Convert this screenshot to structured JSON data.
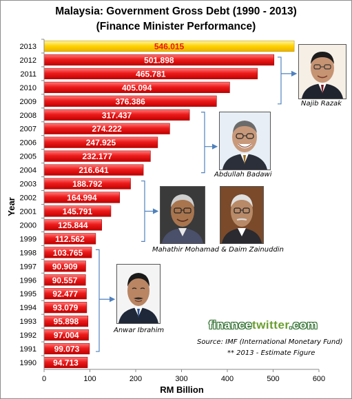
{
  "chart_data": {
    "type": "bar",
    "orientation": "horizontal",
    "title": "Malaysia: Government Gross Debt (1990 - 2013)",
    "subtitle": "(Finance Minister Performance)",
    "xlabel": "RM Billion",
    "ylabel": "Year",
    "xlim": [
      0,
      600
    ],
    "xticks": [
      0,
      100,
      200,
      300,
      400,
      500,
      600
    ],
    "categories": [
      "2013",
      "2012",
      "2011",
      "2010",
      "2009",
      "2008",
      "2007",
      "2006",
      "2005",
      "2004",
      "2003",
      "2002",
      "2001",
      "2000",
      "1999",
      "1998",
      "1997",
      "1996",
      "1995",
      "1994",
      "1993",
      "1992",
      "1991",
      "1990"
    ],
    "values": [
      546.015,
      501.898,
      465.781,
      405.094,
      376.386,
      317.437,
      274.222,
      247.925,
      232.177,
      216.641,
      188.792,
      164.994,
      145.791,
      125.844,
      112.562,
      103.765,
      90.909,
      90.557,
      92.477,
      93.079,
      95.898,
      97.004,
      99.073,
      94.713
    ],
    "value_labels": [
      "546.015",
      "501.898",
      "465.781",
      "405.094",
      "376.386",
      "317.437",
      "274.222",
      "247.925",
      "232.177",
      "216.641",
      "188.792",
      "164.994",
      "145.791",
      "125.844",
      "112.562",
      "103.765",
      "90.909",
      "90.557",
      "92.477",
      "93.079",
      "95.898",
      "97.004",
      "99.073",
      "94.713"
    ],
    "highlight_category": "2013",
    "grid": false,
    "colors": {
      "bar": "#ee1c1c",
      "bar_highlight": "#ffd200",
      "highlight_label": "#e8141c",
      "label": "#ffffff",
      "bracket": "#4f81bd"
    }
  },
  "ministers": [
    {
      "name": "Najib Razak"
    },
    {
      "name": "Abdullah Badawi"
    },
    {
      "name": "Mahathir Mohamad & Daim Zainuddin"
    },
    {
      "name": "Anwar Ibrahim"
    }
  ],
  "watermark": {
    "part1": "finance",
    "part2": "twitter",
    "part3": ".com"
  },
  "source": {
    "line1": "Source: IMF (International Monetary Fund)",
    "line2": "** 2013 - Estimate Figure"
  }
}
